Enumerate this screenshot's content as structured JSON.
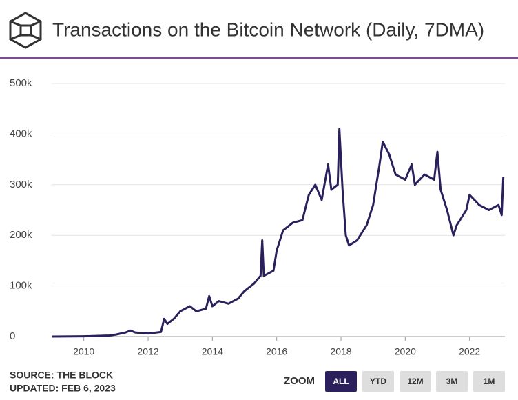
{
  "chart_data": {
    "type": "line",
    "title": "Transactions on the Bitcoin Network (Daily, 7DMA)",
    "x": [
      2009.0,
      2010.0,
      2010.8,
      2011.0,
      2011.3,
      2011.45,
      2011.6,
      2012.0,
      2012.4,
      2012.5,
      2012.6,
      2012.8,
      2013.0,
      2013.3,
      2013.5,
      2013.8,
      2013.9,
      2014.0,
      2014.2,
      2014.5,
      2014.8,
      2015.0,
      2015.3,
      2015.5,
      2015.55,
      2015.6,
      2015.9,
      2016.0,
      2016.2,
      2016.5,
      2016.8,
      2017.0,
      2017.2,
      2017.4,
      2017.6,
      2017.7,
      2017.9,
      2017.95,
      2018.05,
      2018.15,
      2018.25,
      2018.5,
      2018.8,
      2019.0,
      2019.2,
      2019.3,
      2019.5,
      2019.7,
      2020.0,
      2020.2,
      2020.3,
      2020.6,
      2020.9,
      2021.0,
      2021.1,
      2021.3,
      2021.5,
      2021.6,
      2021.9,
      2022.0,
      2022.3,
      2022.6,
      2022.9,
      2023.0,
      2023.05
    ],
    "series": [
      {
        "name": "Transactions",
        "color": "#2b1f5c",
        "values": [
          0,
          500,
          2000,
          4000,
          8000,
          12000,
          8000,
          6000,
          9000,
          35000,
          25000,
          35000,
          50000,
          60000,
          50000,
          55000,
          80000,
          60000,
          70000,
          65000,
          75000,
          90000,
          105000,
          120000,
          190000,
          120000,
          130000,
          170000,
          210000,
          225000,
          230000,
          280000,
          300000,
          270000,
          340000,
          290000,
          300000,
          410000,
          290000,
          200000,
          180000,
          190000,
          220000,
          260000,
          340000,
          385000,
          360000,
          320000,
          310000,
          340000,
          300000,
          320000,
          310000,
          365000,
          290000,
          250000,
          200000,
          220000,
          250000,
          280000,
          260000,
          250000,
          260000,
          240000,
          315000
        ]
      }
    ],
    "xlim": [
      2009.0,
      2023.1
    ],
    "xticks": [
      2010,
      2012,
      2014,
      2016,
      2018,
      2020,
      2022
    ],
    "ylim": [
      0,
      500000
    ],
    "yticks": [
      0,
      {
        "value": 100000,
        "label": "100k"
      },
      {
        "value": 200000,
        "label": "200k"
      },
      {
        "value": 300000,
        "label": "300k"
      },
      {
        "value": 400000,
        "label": "400k"
      },
      {
        "value": 500000,
        "label": "500k"
      }
    ],
    "grid": true
  },
  "footer": {
    "source": "SOURCE: THE BLOCK",
    "updated": "UPDATED: FEB 6, 2023",
    "zoom_label": "ZOOM",
    "zoom_buttons": [
      "ALL",
      "YTD",
      "12M",
      "3M",
      "1M"
    ]
  }
}
